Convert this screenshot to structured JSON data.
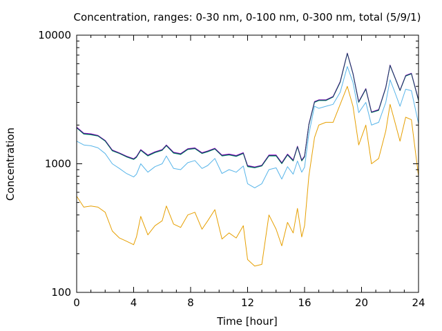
{
  "chart_data": {
    "type": "line",
    "title": "Concentration, ranges: 0-30 nm, 0-100 nm, 0-300 nm, total (5/9/1)",
    "xlabel": "Time [hour]",
    "ylabel": "Concentration",
    "xlim": [
      0,
      24
    ],
    "ylim": [
      100,
      10000
    ],
    "yscale": "log",
    "grid": false,
    "legend": "none",
    "x_ticks": [
      0,
      4,
      8,
      12,
      16,
      20,
      24
    ],
    "x_tick_labels": [
      "0",
      "4",
      "8",
      "12",
      "16",
      "20",
      "24"
    ],
    "y_tick_labels": [
      "100",
      "1000",
      "10000"
    ],
    "y_tick_values": [
      100,
      1000,
      10000
    ],
    "x": [
      0,
      0.5,
      1,
      1.5,
      2,
      2.5,
      3,
      3.5,
      4,
      4.2,
      4.5,
      5,
      5.5,
      6,
      6.3,
      6.8,
      7.3,
      7.8,
      8.3,
      8.8,
      9.2,
      9.7,
      10.2,
      10.7,
      11.2,
      11.7,
      12,
      12.5,
      13,
      13.5,
      14,
      14.4,
      14.8,
      15.2,
      15.5,
      15.8,
      16,
      16.3,
      16.7,
      17,
      17.5,
      18,
      18.5,
      19,
      19.4,
      19.8,
      20.3,
      20.7,
      21.2,
      21.7,
      22,
      22.3,
      22.7,
      23.1,
      23.5,
      24
    ],
    "series": [
      {
        "color": "#e69f00",
        "values": [
          560,
          460,
          470,
          460,
          420,
          300,
          265,
          250,
          235,
          270,
          390,
          280,
          330,
          360,
          470,
          340,
          320,
          400,
          420,
          310,
          360,
          440,
          260,
          290,
          265,
          330,
          180,
          160,
          165,
          400,
          310,
          230,
          350,
          290,
          450,
          270,
          330,
          800,
          1600,
          2000,
          2100,
          2100,
          2900,
          4000,
          2800,
          1400,
          2000,
          1000,
          1100,
          1800,
          2900,
          2200,
          1500,
          2300,
          2200,
          800
        ]
      },
      {
        "color": "#56b4e9",
        "values": [
          1500,
          1400,
          1380,
          1330,
          1200,
          1000,
          920,
          840,
          790,
          830,
          1000,
          860,
          950,
          1000,
          1150,
          920,
          900,
          1020,
          1060,
          920,
          970,
          1100,
          840,
          900,
          860,
          960,
          700,
          650,
          700,
          900,
          930,
          760,
          950,
          830,
          1050,
          860,
          940,
          1700,
          2800,
          2700,
          2800,
          2900,
          3600,
          5700,
          4300,
          2500,
          3000,
          2000,
          2100,
          3000,
          4500,
          3700,
          2800,
          3800,
          3700,
          2050
        ]
      },
      {
        "color": "#009e73",
        "values": [
          1900,
          1700,
          1680,
          1640,
          1500,
          1260,
          1200,
          1130,
          1080,
          1120,
          1270,
          1150,
          1220,
          1270,
          1380,
          1210,
          1180,
          1290,
          1310,
          1200,
          1240,
          1300,
          1150,
          1170,
          1140,
          1200,
          950,
          930,
          960,
          1150,
          1150,
          1000,
          1170,
          1050,
          1350,
          1050,
          1130,
          2000,
          3000,
          3100,
          3100,
          3300,
          4300,
          7200,
          5000,
          3000,
          3800,
          2500,
          2600,
          3900,
          5800,
          4800,
          3700,
          4800,
          5000,
          3100
        ]
      },
      {
        "color": "#9400d3",
        "values": [
          1930,
          1730,
          1710,
          1660,
          1520,
          1280,
          1215,
          1145,
          1095,
          1140,
          1290,
          1170,
          1240,
          1290,
          1400,
          1230,
          1200,
          1310,
          1330,
          1220,
          1260,
          1320,
          1170,
          1190,
          1160,
          1220,
          970,
          945,
          975,
          1170,
          1170,
          1020,
          1190,
          1070,
          1370,
          1070,
          1150,
          2030,
          3050,
          3140,
          3140,
          3340,
          4360,
          7250,
          5060,
          3040,
          3840,
          2530,
          2640,
          3940,
          5860,
          4840,
          3740,
          4860,
          5060,
          3140
        ]
      },
      {
        "color": "#1f3a5f",
        "values": [
          1910,
          1715,
          1695,
          1650,
          1510,
          1270,
          1208,
          1138,
          1088,
          1130,
          1280,
          1160,
          1230,
          1280,
          1390,
          1220,
          1190,
          1300,
          1320,
          1210,
          1250,
          1310,
          1160,
          1180,
          1150,
          1210,
          960,
          938,
          968,
          1160,
          1160,
          1010,
          1180,
          1060,
          1360,
          1060,
          1140,
          2015,
          3025,
          3120,
          3120,
          3320,
          4330,
          7230,
          5030,
          3020,
          3820,
          2515,
          2620,
          3920,
          5830,
          4820,
          3720,
          4830,
          5030,
          3120
        ]
      }
    ]
  }
}
